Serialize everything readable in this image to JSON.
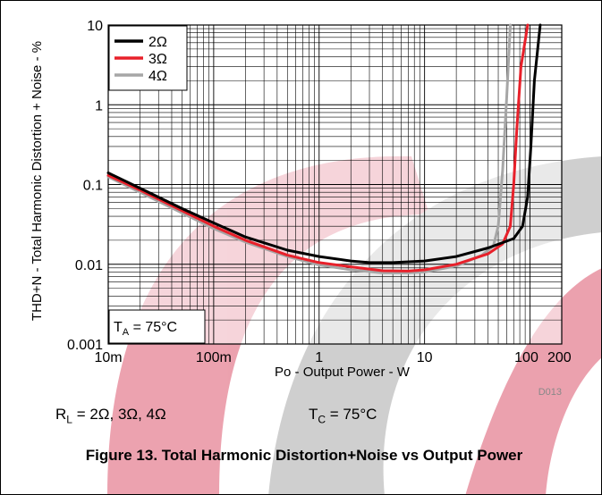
{
  "chart_data": {
    "type": "line",
    "title": "",
    "xlabel": "Po - Output Power - W",
    "ylabel": "THD+N - Total Harmonic Distortion + Noise - %",
    "x_scale": "log",
    "y_scale": "log",
    "xlim": [
      0.01,
      200
    ],
    "ylim": [
      0.001,
      10
    ],
    "grid": true,
    "legend_position": "top-left",
    "x_tick_labels": [
      {
        "value": 0.01,
        "label": "10m"
      },
      {
        "value": 0.1,
        "label": "100m"
      },
      {
        "value": 1,
        "label": "1"
      },
      {
        "value": 10,
        "label": "10"
      },
      {
        "value": 100,
        "label": "100"
      },
      {
        "value": 200,
        "label": "200"
      }
    ],
    "y_tick_labels": [
      {
        "value": 10,
        "label": "10"
      },
      {
        "value": 1,
        "label": "1"
      },
      {
        "value": 0.1,
        "label": "0.1"
      },
      {
        "value": 0.01,
        "label": "0.01"
      },
      {
        "value": 0.001,
        "label": "0.001"
      }
    ],
    "annotation": "TA = 75°C",
    "figure_id": "D013",
    "series": [
      {
        "name": "2Ω",
        "color": "#000000",
        "x": [
          0.01,
          0.02,
          0.05,
          0.1,
          0.2,
          0.5,
          1,
          2,
          3,
          5,
          10,
          20,
          40,
          70,
          85,
          95,
          102,
          110,
          125
        ],
        "y": [
          0.14,
          0.09,
          0.05,
          0.033,
          0.022,
          0.015,
          0.0125,
          0.011,
          0.0105,
          0.0105,
          0.011,
          0.0125,
          0.016,
          0.021,
          0.03,
          0.07,
          0.3,
          2,
          10
        ]
      },
      {
        "name": "3Ω",
        "color": "#e8202a",
        "x": [
          0.01,
          0.02,
          0.05,
          0.1,
          0.2,
          0.5,
          1,
          2,
          4,
          7,
          10,
          20,
          40,
          55,
          65,
          70,
          75,
          82,
          95
        ],
        "y": [
          0.13,
          0.085,
          0.047,
          0.03,
          0.02,
          0.013,
          0.0105,
          0.0093,
          0.0083,
          0.0082,
          0.0085,
          0.01,
          0.0135,
          0.018,
          0.03,
          0.1,
          0.5,
          3,
          10
        ]
      },
      {
        "name": "4Ω",
        "color": "#a6a6a6",
        "x": [
          0.01,
          0.02,
          0.05,
          0.1,
          0.2,
          0.5,
          1,
          2,
          4,
          7,
          10,
          20,
          35,
          45,
          50,
          55,
          60,
          65
        ],
        "y": [
          0.125,
          0.08,
          0.044,
          0.028,
          0.019,
          0.0125,
          0.0098,
          0.0085,
          0.0078,
          0.0078,
          0.008,
          0.0095,
          0.013,
          0.017,
          0.03,
          0.15,
          1.2,
          10
        ]
      }
    ]
  },
  "conditions": {
    "rl": "R",
    "rl_sub": "L",
    "rl_value": " = 2Ω, 3Ω, 4Ω",
    "tc": "T",
    "tc_sub": "C",
    "tc_value": " = 75°C"
  },
  "annotation_parts": {
    "main": "T",
    "sub": "A",
    "rest": " = 75°C"
  },
  "caption": "Figure 13. Total Harmonic Distortion+Noise vs Output Power",
  "watermark": {
    "red": "#d9455f",
    "gray": "#a0a0a0"
  }
}
